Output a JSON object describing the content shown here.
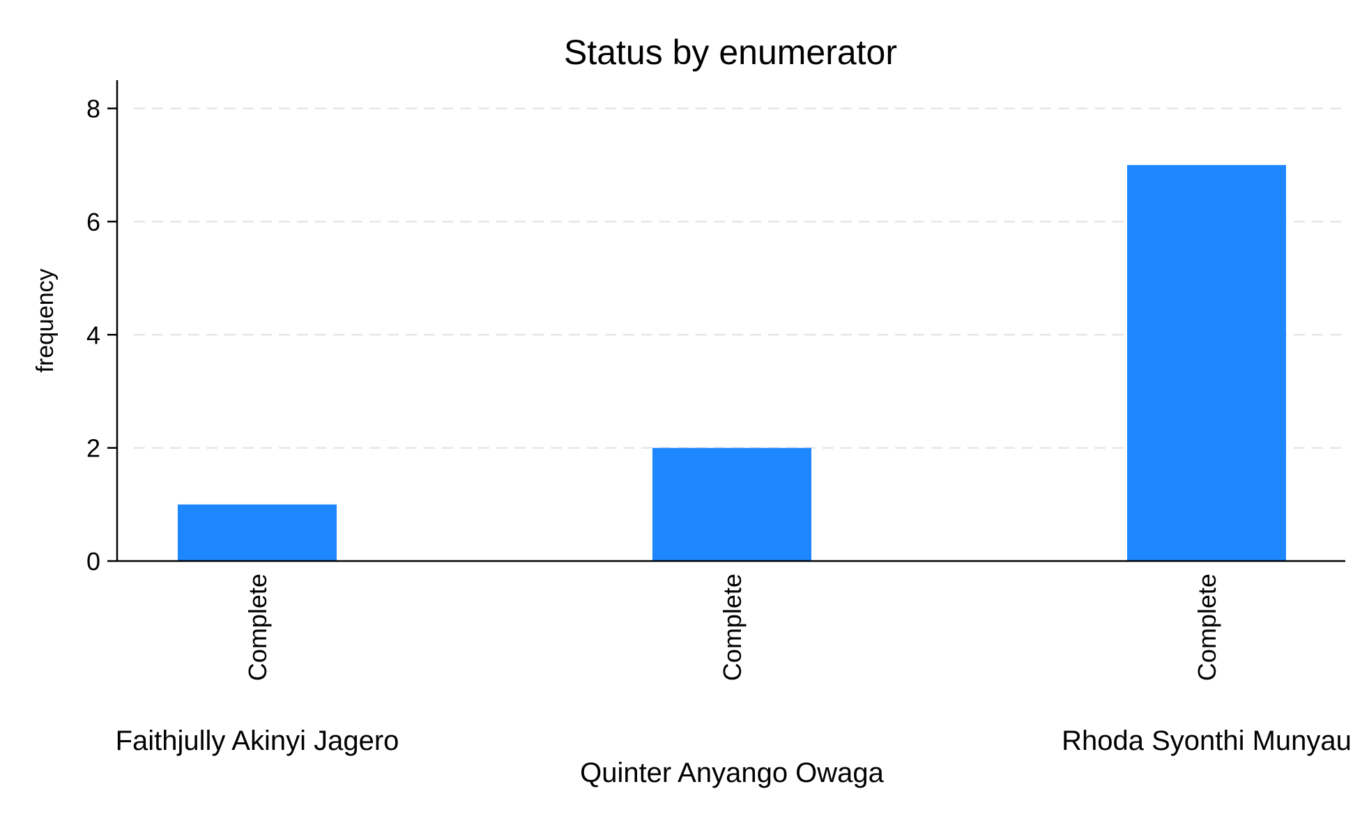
{
  "chart_data": {
    "type": "bar",
    "title": "Status by enumerator",
    "ylabel": "frequency",
    "xlabel": "",
    "ylim": [
      0,
      8.5
    ],
    "yticks": [
      0,
      2,
      4,
      6,
      8
    ],
    "grid": true,
    "bar_color": "#1e86ff",
    "categories": [
      {
        "group": "Faithjully Akinyi Jagero",
        "status": "Complete",
        "value": 1
      },
      {
        "group": "Quinter Anyango Owaga",
        "status": "Complete",
        "value": 2
      },
      {
        "group": "Rhoda Syonthi Munyau",
        "status": "Complete",
        "value": 7
      }
    ]
  }
}
